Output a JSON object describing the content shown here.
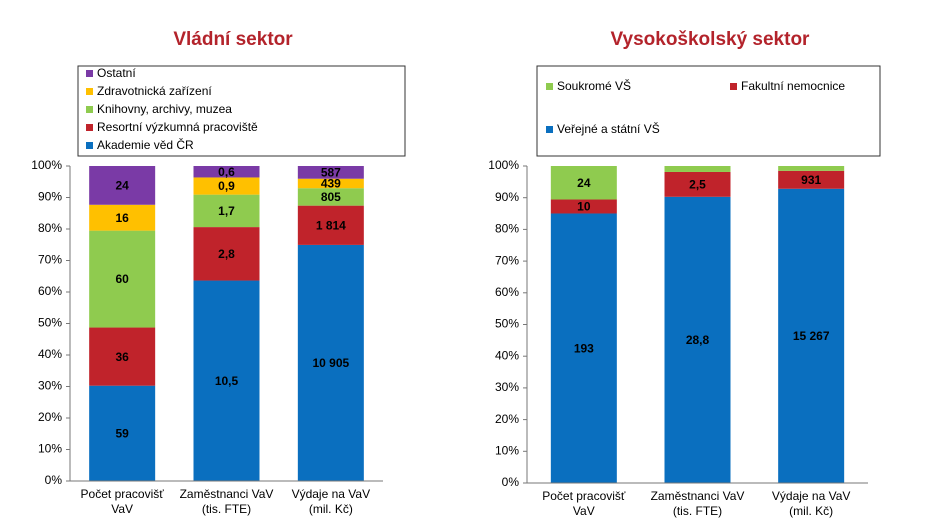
{
  "chart_data": [
    {
      "type": "bar",
      "stacked": "percent",
      "title": "Vládní sektor",
      "categories": [
        "Počet pracovišť\nVaV",
        "Zaměstnanci VaV\n(tis. FTE)",
        "Výdaje na VaV\n(mil. Kč)"
      ],
      "series": [
        {
          "name": "Akademie věd ČR",
          "color": "#0a6fbf",
          "values": [
            59,
            10.5,
            10905
          ],
          "value_labels": [
            "59",
            "10,5",
            "10 905"
          ]
        },
        {
          "name": "Resortní výzkumná pracoviště",
          "color": "#c0232b",
          "values": [
            36,
            2.8,
            1814
          ],
          "value_labels": [
            "36",
            "2,8",
            "1 814"
          ]
        },
        {
          "name": "Knihovny, archivy, muzea",
          "color": "#8fcb4f",
          "values": [
            60,
            1.7,
            805
          ],
          "value_labels": [
            "60",
            "1,7",
            "805"
          ]
        },
        {
          "name": "Zdravotnická zařízení",
          "color": "#ffc000",
          "values": [
            16,
            0.9,
            439
          ],
          "value_labels": [
            "16",
            "0,9",
            "439"
          ]
        },
        {
          "name": "Ostatní",
          "color": "#7a3aa6",
          "values": [
            24,
            0.6,
            587
          ],
          "value_labels": [
            "24",
            "0,6",
            "587"
          ]
        }
      ],
      "ylim": [
        0,
        100
      ],
      "yticks": [
        {
          "value": 0,
          "label": "0%"
        },
        {
          "value": 10,
          "label": "10%"
        },
        {
          "value": 20,
          "label": "20%"
        },
        {
          "value": 30,
          "label": "30%"
        },
        {
          "value": 40,
          "label": "40%"
        },
        {
          "value": 50,
          "label": "50%"
        },
        {
          "value": 60,
          "label": "60%"
        },
        {
          "value": 70,
          "label": "70%"
        },
        {
          "value": 80,
          "label": "80%"
        },
        {
          "value": 90,
          "label": "90%"
        },
        {
          "value": 100,
          "label": "100%"
        }
      ],
      "grid": false
    },
    {
      "type": "bar",
      "stacked": "percent",
      "title": "Vysokoškolský sektor",
      "categories": [
        "Počet pracovišť\nVaV",
        "Zaměstnanci VaV\n(tis. FTE)",
        "Výdaje na VaV\n(mil. Kč)"
      ],
      "series": [
        {
          "name": "Veřejné a státní VŠ",
          "color": "#0a6fbf",
          "values": [
            193,
            28.8,
            15267
          ],
          "value_labels": [
            "193",
            "28,8",
            "15 267"
          ]
        },
        {
          "name": "Fakultní nemocnice",
          "color": "#c0232b",
          "values": [
            10,
            2.5,
            931
          ],
          "value_labels": [
            "10",
            "2,5",
            "931"
          ]
        },
        {
          "name": "Soukromé VŠ",
          "color": "#8fcb4f",
          "values": [
            24,
            0.6,
            250
          ],
          "value_labels": [
            "24",
            null,
            null
          ]
        }
      ],
      "ylim": [
        0,
        100
      ],
      "yticks": [
        {
          "value": 0,
          "label": "0%"
        },
        {
          "value": 10,
          "label": "10%"
        },
        {
          "value": 20,
          "label": "20%"
        },
        {
          "value": 30,
          "label": "30%"
        },
        {
          "value": 40,
          "label": "40%"
        },
        {
          "value": 50,
          "label": "50%"
        },
        {
          "value": 60,
          "label": "60%"
        },
        {
          "value": 70,
          "label": "70%"
        },
        {
          "value": 80,
          "label": "80%"
        },
        {
          "value": 90,
          "label": "90%"
        },
        {
          "value": 100,
          "label": "100%"
        }
      ],
      "grid": false
    }
  ]
}
